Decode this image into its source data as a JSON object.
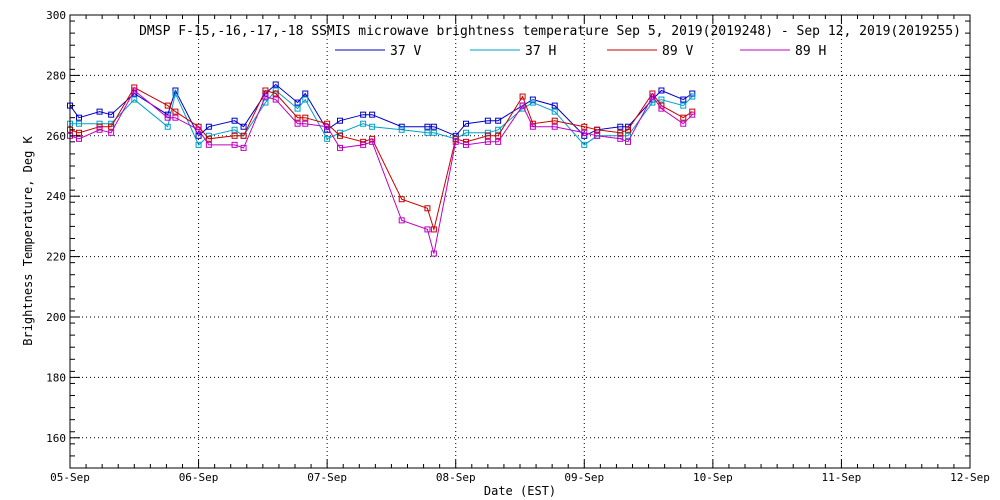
{
  "chart_data": {
    "type": "line",
    "title": "DMSP F-15,-16,-17,-18 SSMIS microwave brightness temperature Sep  5, 2019(2019248) - Sep 12, 2019(2019255)",
    "xlabel": "Date (EST)",
    "ylabel": "Brightness Temperature, Deg K",
    "xlim": [
      0,
      7
    ],
    "ylim": [
      150,
      300
    ],
    "x_ticks": [
      0,
      1,
      2,
      3,
      4,
      5,
      6,
      7
    ],
    "x_tick_labels": [
      "05-Sep",
      "06-Sep",
      "07-Sep",
      "08-Sep",
      "09-Sep",
      "10-Sep",
      "11-Sep",
      "12-Sep"
    ],
    "y_ticks": [
      160,
      180,
      200,
      220,
      240,
      260,
      280,
      300
    ],
    "y_tick_labels": [
      "160",
      "180",
      "200",
      "220",
      "240",
      "260",
      "280",
      "300"
    ],
    "grid": true,
    "legend_position": "top",
    "series": [
      {
        "name": "37 V",
        "color": "#0000c8",
        "x": [
          0.0,
          0.07,
          0.23,
          0.32,
          0.5,
          0.76,
          0.82,
          1.0,
          1.08,
          1.28,
          1.35,
          1.52,
          1.6,
          1.77,
          1.83,
          2.0,
          2.1,
          2.28,
          2.35,
          2.58,
          2.78,
          2.83,
          3.0,
          3.08,
          3.25,
          3.33,
          3.52,
          3.6,
          3.77,
          4.0,
          4.1,
          4.28,
          4.34,
          4.53,
          4.6,
          4.77,
          4.84
        ],
        "y": [
          270,
          266,
          268,
          267,
          274,
          267,
          275,
          260,
          263,
          265,
          263,
          274,
          277,
          271,
          274,
          262,
          265,
          267,
          267,
          263,
          263,
          263,
          260,
          264,
          265,
          265,
          270,
          272,
          270,
          260,
          262,
          263,
          263,
          272,
          275,
          272,
          274
        ]
      },
      {
        "name": "37 H",
        "color": "#00a0c8",
        "x": [
          0.0,
          0.07,
          0.23,
          0.32,
          0.5,
          0.76,
          0.82,
          1.0,
          1.08,
          1.28,
          1.35,
          1.52,
          1.6,
          1.77,
          1.83,
          2.0,
          2.1,
          2.28,
          2.35,
          2.58,
          2.78,
          2.83,
          3.0,
          3.08,
          3.25,
          3.33,
          3.52,
          3.6,
          3.77,
          4.0,
          4.1,
          4.28,
          4.34,
          4.53,
          4.6,
          4.77,
          4.84
        ],
        "y": [
          264,
          264,
          264,
          264,
          272,
          263,
          274,
          257,
          260,
          262,
          260,
          271,
          275,
          269,
          272,
          259,
          261,
          264,
          263,
          262,
          261,
          261,
          259,
          261,
          261,
          262,
          269,
          271,
          268,
          257,
          260,
          260,
          260,
          271,
          272,
          270,
          273
        ]
      },
      {
        "name": "89 V",
        "color": "#c80000",
        "x": [
          0.0,
          0.07,
          0.23,
          0.32,
          0.5,
          0.76,
          0.82,
          1.0,
          1.08,
          1.28,
          1.35,
          1.52,
          1.6,
          1.77,
          1.83,
          2.0,
          2.1,
          2.28,
          2.35,
          2.58,
          2.78,
          2.83,
          3.0,
          3.08,
          3.25,
          3.33,
          3.52,
          3.6,
          3.77,
          4.0,
          4.1,
          4.28,
          4.34,
          4.53,
          4.6,
          4.77,
          4.84
        ],
        "y": [
          262,
          261,
          263,
          263,
          276,
          270,
          268,
          263,
          259,
          260,
          260,
          275,
          274,
          266,
          266,
          264,
          260,
          258,
          259,
          239,
          236,
          229,
          259,
          258,
          260,
          260,
          273,
          264,
          265,
          263,
          262,
          261,
          262,
          274,
          270,
          266,
          268
        ]
      },
      {
        "name": "89 H",
        "color": "#c000c0",
        "x": [
          0.0,
          0.07,
          0.23,
          0.32,
          0.5,
          0.76,
          0.82,
          1.0,
          1.08,
          1.28,
          1.35,
          1.52,
          1.6,
          1.77,
          1.83,
          2.0,
          2.1,
          2.28,
          2.35,
          2.58,
          2.78,
          2.83,
          3.0,
          3.08,
          3.25,
          3.33,
          3.52,
          3.6,
          3.77,
          4.0,
          4.1,
          4.28,
          4.34,
          4.53,
          4.6,
          4.77,
          4.84
        ],
        "y": [
          260,
          259,
          262,
          261,
          275,
          266,
          266,
          262,
          257,
          257,
          256,
          273,
          272,
          264,
          264,
          263,
          256,
          257,
          258,
          232,
          229,
          221,
          258,
          257,
          258,
          258,
          270,
          263,
          263,
          261,
          260,
          259,
          258,
          273,
          269,
          264,
          267
        ]
      }
    ]
  }
}
